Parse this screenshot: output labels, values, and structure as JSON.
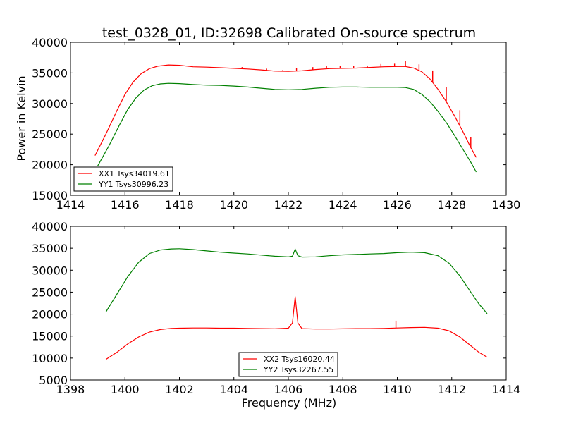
{
  "chart_data": [
    {
      "type": "line",
      "title": "test_0328_01, ID:32698 Calibrated On-source spectrum",
      "xlabel": "",
      "ylabel": "Power in Kelvin",
      "xlim": [
        1414,
        1430
      ],
      "ylim": [
        15000,
        40000
      ],
      "xticks": [
        "1414",
        "1416",
        "1418",
        "1420",
        "1422",
        "1424",
        "1426",
        "1428",
        "1430"
      ],
      "yticks": [
        "15000",
        "20000",
        "25000",
        "30000",
        "35000",
        "40000"
      ],
      "grid": false,
      "legend_position": "lower-left",
      "series": [
        {
          "name": "XX1 Tsys34019.61",
          "color": "#ff0000",
          "x": [
            1414.9,
            1415.3,
            1415.7,
            1416.0,
            1416.3,
            1416.6,
            1416.9,
            1417.2,
            1417.6,
            1418.0,
            1418.5,
            1419.0,
            1419.5,
            1420.0,
            1420.5,
            1421.0,
            1421.5,
            1422.0,
            1422.5,
            1423.0,
            1423.5,
            1424.0,
            1424.5,
            1425.0,
            1425.5,
            1426.0,
            1426.3,
            1426.6,
            1426.9,
            1427.2,
            1427.5,
            1427.8,
            1428.1,
            1428.4,
            1428.7,
            1428.9
          ],
          "y": [
            21500,
            25000,
            28800,
            31500,
            33500,
            34900,
            35700,
            36100,
            36300,
            36250,
            36000,
            35950,
            35850,
            35750,
            35650,
            35500,
            35300,
            35250,
            35350,
            35550,
            35700,
            35750,
            35800,
            35900,
            36000,
            36050,
            36050,
            35800,
            35200,
            34000,
            32300,
            30300,
            28000,
            25500,
            22800,
            21200
          ],
          "spikes": [
            {
              "x": 1420.3,
              "y": 35950
            },
            {
              "x": 1421.2,
              "y": 35700
            },
            {
              "x": 1421.8,
              "y": 35500
            },
            {
              "x": 1422.3,
              "y": 35800
            },
            {
              "x": 1422.9,
              "y": 35950
            },
            {
              "x": 1423.4,
              "y": 36100
            },
            {
              "x": 1423.9,
              "y": 36100
            },
            {
              "x": 1424.4,
              "y": 36100
            },
            {
              "x": 1424.9,
              "y": 36200
            },
            {
              "x": 1425.4,
              "y": 36450
            },
            {
              "x": 1425.9,
              "y": 36500
            },
            {
              "x": 1426.3,
              "y": 36900
            },
            {
              "x": 1426.8,
              "y": 36400
            },
            {
              "x": 1427.3,
              "y": 35400
            },
            {
              "x": 1427.8,
              "y": 32700
            },
            {
              "x": 1428.3,
              "y": 28900
            },
            {
              "x": 1428.7,
              "y": 24500
            }
          ]
        },
        {
          "name": "YY1 Tsys30996.23",
          "color": "#008000",
          "x": [
            1415.0,
            1415.4,
            1415.8,
            1416.1,
            1416.4,
            1416.7,
            1417.0,
            1417.3,
            1417.6,
            1418.0,
            1418.5,
            1419.0,
            1419.5,
            1420.0,
            1420.5,
            1421.0,
            1421.5,
            1422.0,
            1422.5,
            1423.0,
            1423.5,
            1424.0,
            1424.5,
            1425.0,
            1425.5,
            1426.0,
            1426.3,
            1426.6,
            1426.9,
            1427.2,
            1427.5,
            1427.8,
            1428.1,
            1428.4,
            1428.7,
            1428.9
          ],
          "y": [
            19800,
            23000,
            26500,
            29000,
            30900,
            32200,
            32900,
            33200,
            33300,
            33250,
            33100,
            33000,
            32950,
            32850,
            32700,
            32500,
            32300,
            32250,
            32300,
            32500,
            32650,
            32700,
            32700,
            32650,
            32650,
            32650,
            32600,
            32300,
            31500,
            30300,
            28700,
            26900,
            24800,
            22600,
            20400,
            18800
          ]
        }
      ]
    },
    {
      "type": "line",
      "title": "",
      "xlabel": "Frequency (MHz)",
      "ylabel": "",
      "xlim": [
        1398,
        1414
      ],
      "ylim": [
        5000,
        40000
      ],
      "xticks": [
        "1398",
        "1400",
        "1402",
        "1404",
        "1406",
        "1408",
        "1410",
        "1412",
        "1414"
      ],
      "yticks": [
        "5000",
        "10000",
        "15000",
        "20000",
        "25000",
        "30000",
        "35000",
        "40000"
      ],
      "grid": false,
      "legend_position": "lower-center",
      "series": [
        {
          "name": "XX2 Tsys16020.44",
          "color": "#ff0000",
          "x": [
            1399.3,
            1399.7,
            1400.1,
            1400.5,
            1400.9,
            1401.3,
            1401.7,
            1402.0,
            1402.5,
            1403.0,
            1403.5,
            1404.0,
            1404.5,
            1405.0,
            1405.5,
            1406.0,
            1406.15,
            1406.25,
            1406.35,
            1406.5,
            1407.0,
            1407.5,
            1408.0,
            1408.5,
            1409.0,
            1409.5,
            1410.0,
            1410.5,
            1411.0,
            1411.5,
            1411.9,
            1412.3,
            1412.7,
            1413.0,
            1413.3
          ],
          "y": [
            9700,
            11300,
            13200,
            14800,
            15900,
            16500,
            16750,
            16800,
            16850,
            16850,
            16800,
            16800,
            16750,
            16700,
            16650,
            16800,
            18000,
            24000,
            18000,
            16700,
            16600,
            16600,
            16650,
            16700,
            16700,
            16750,
            16850,
            16950,
            17000,
            16800,
            16200,
            14800,
            12800,
            11300,
            10200
          ],
          "spikes": [
            {
              "x": 1409.95,
              "y": 18500
            }
          ]
        },
        {
          "name": "YY2 Tsys32267.55",
          "color": "#008000",
          "x": [
            1399.3,
            1399.7,
            1400.1,
            1400.5,
            1400.9,
            1401.3,
            1401.7,
            1402.0,
            1402.5,
            1403.0,
            1403.5,
            1404.0,
            1404.5,
            1405.0,
            1405.5,
            1406.0,
            1406.15,
            1406.25,
            1406.35,
            1406.5,
            1407.0,
            1407.5,
            1408.0,
            1408.5,
            1409.0,
            1409.5,
            1410.0,
            1410.5,
            1411.0,
            1411.5,
            1411.9,
            1412.3,
            1412.7,
            1413.0,
            1413.3
          ],
          "y": [
            20500,
            24500,
            28500,
            31800,
            33800,
            34600,
            34850,
            34900,
            34700,
            34400,
            34100,
            33900,
            33700,
            33450,
            33200,
            33050,
            33200,
            34800,
            33300,
            33000,
            33050,
            33300,
            33500,
            33600,
            33700,
            33800,
            34000,
            34100,
            34000,
            33300,
            31600,
            28700,
            25000,
            22300,
            20100
          ]
        }
      ]
    }
  ]
}
